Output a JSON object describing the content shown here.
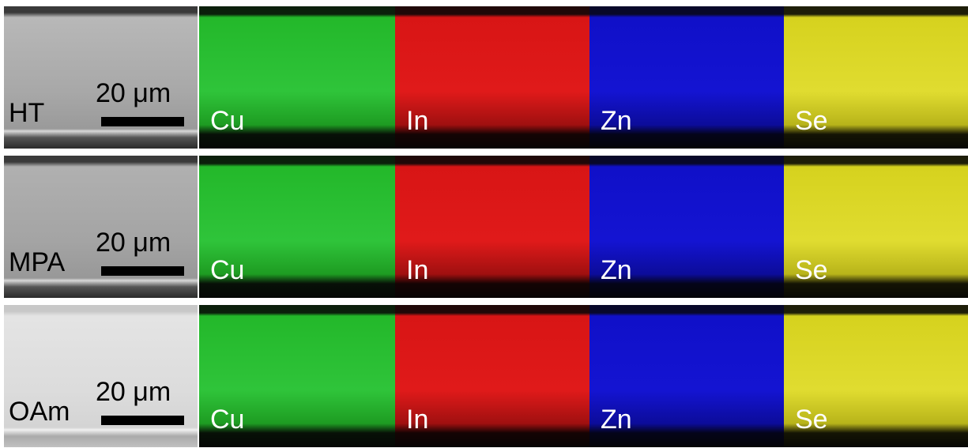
{
  "rows": [
    {
      "sample": "HT",
      "scale_bar": "20 μm",
      "maps": [
        "Cu",
        "In",
        "Zn",
        "Se"
      ]
    },
    {
      "sample": "MPA",
      "scale_bar": "20 μm",
      "maps": [
        "Cu",
        "In",
        "Zn",
        "Se"
      ]
    },
    {
      "sample": "OAm",
      "scale_bar": "20 μm",
      "maps": [
        "Cu",
        "In",
        "Zn",
        "Se"
      ]
    }
  ]
}
